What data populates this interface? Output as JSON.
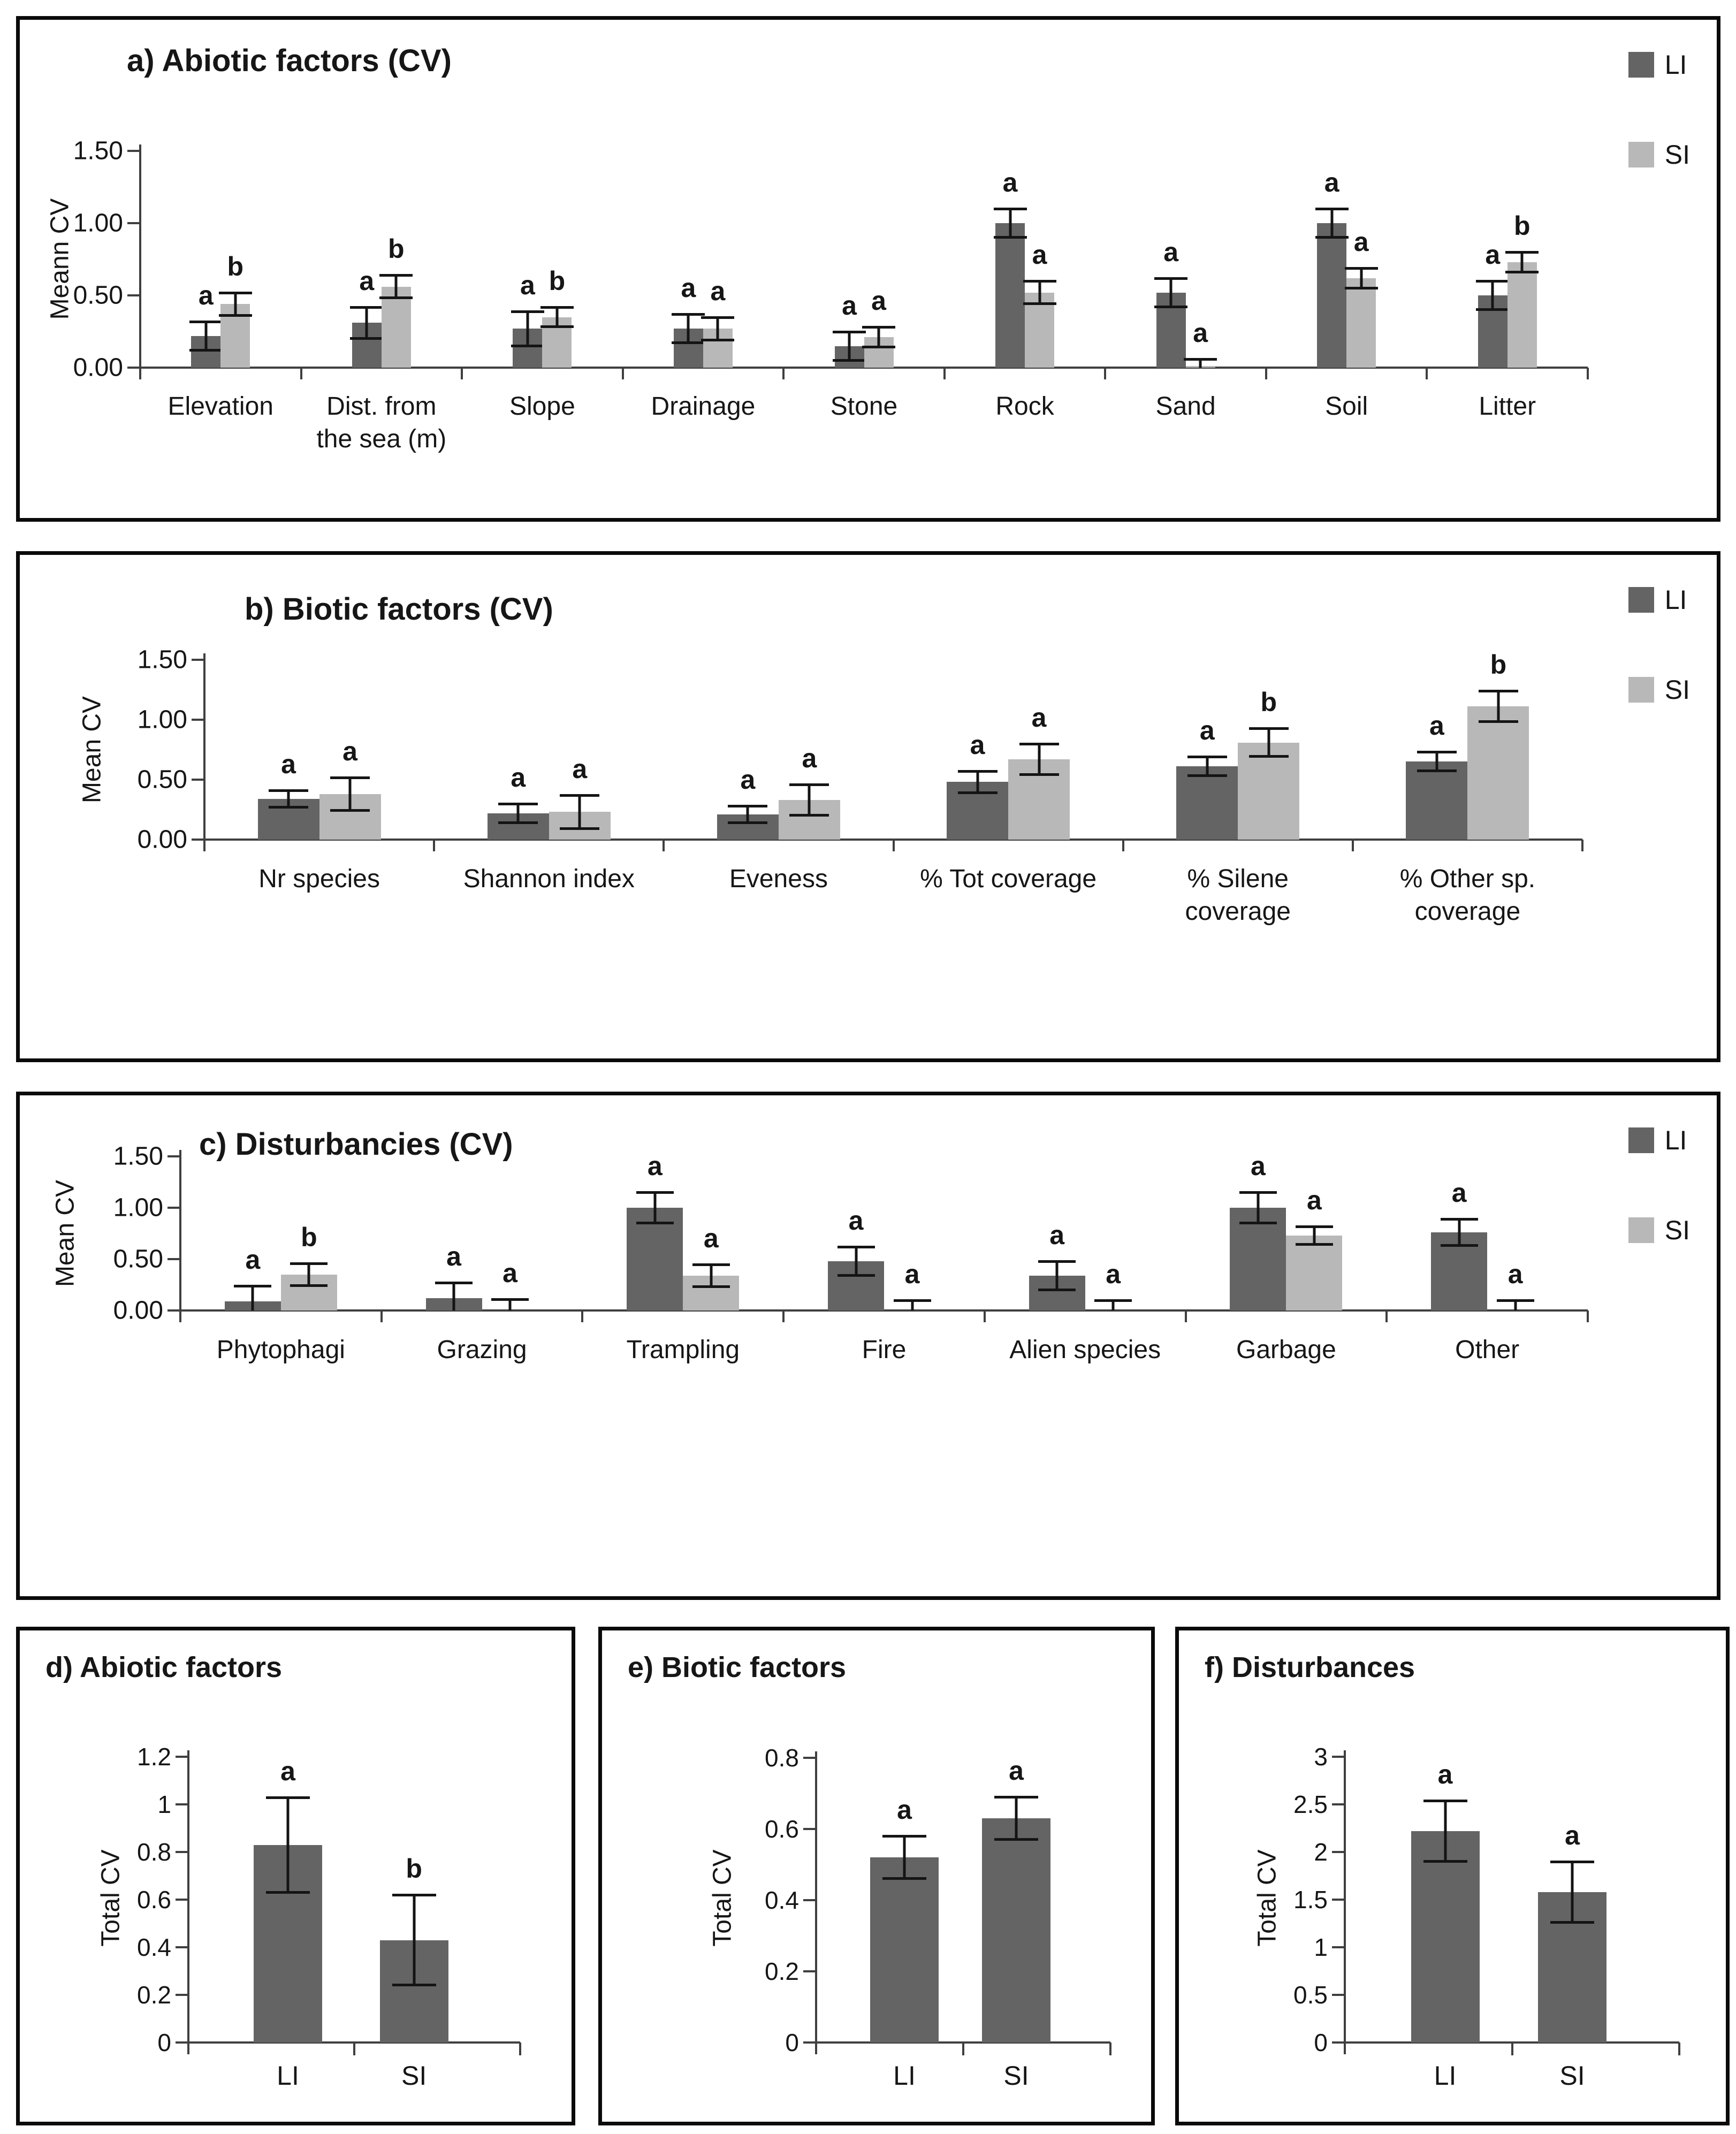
{
  "page": {
    "background": "#ffffff"
  },
  "colors": {
    "li": "#646464",
    "si": "#b8b8b8",
    "axis": "#3f3f3f",
    "error_bar": "#141414",
    "text": "#161616",
    "panel_border": "#0a0a0a"
  },
  "legend": {
    "li_label": "LI",
    "si_label": "SI"
  },
  "chart_data": [
    {
      "id": "a",
      "type": "bar",
      "title": "a) Abiotic factors (CV)",
      "ylabel": "Meann CV",
      "yticks": [
        "0.00",
        "0.50",
        "1.00",
        "1.50"
      ],
      "tick_interval": 0.5,
      "ylim": [
        0,
        1.5
      ],
      "grid": false,
      "legend": [
        "LI",
        "SI"
      ],
      "legend_position": "top-right",
      "categories": [
        "Elevation",
        "Dist. from\nthe sea (m)",
        "Slope",
        "Drainage",
        "Stone",
        "Rock",
        "Sand",
        "Soil",
        "Litter"
      ],
      "series": [
        {
          "name": "LI",
          "color_key": "li",
          "values": [
            0.22,
            0.31,
            0.27,
            0.27,
            0.15,
            1.0,
            0.52,
            1.0,
            0.5
          ],
          "errors": [
            0.1,
            0.11,
            0.12,
            0.1,
            0.1,
            0.1,
            0.1,
            0.1,
            0.1
          ],
          "letters": [
            "a",
            "a",
            "a",
            "a",
            "a",
            "a",
            "a",
            "a",
            "a"
          ]
        },
        {
          "name": "SI",
          "color_key": "si",
          "values": [
            0.44,
            0.56,
            0.35,
            0.27,
            0.21,
            0.52,
            0.01,
            0.62,
            0.73
          ],
          "errors": [
            0.08,
            0.08,
            0.07,
            0.08,
            0.07,
            0.08,
            0.05,
            0.07,
            0.07
          ],
          "letters": [
            "b",
            "b",
            "b",
            "a",
            "a",
            "a",
            "a",
            "a",
            "b"
          ]
        }
      ]
    },
    {
      "id": "b",
      "type": "bar",
      "title": "b) Biotic factors (CV)",
      "ylabel": "Mean CV",
      "yticks": [
        "0.00",
        "0.50",
        "1.00",
        "1.50"
      ],
      "tick_interval": 0.5,
      "ylim": [
        0,
        1.5
      ],
      "grid": false,
      "legend": [
        "LI",
        "SI"
      ],
      "legend_position": "top-right",
      "categories": [
        "Nr species",
        "Shannon index",
        "Eveness",
        "% Tot coverage",
        "% Silene\ncoverage",
        "% Other sp.\ncoverage"
      ],
      "series": [
        {
          "name": "LI",
          "color_key": "li",
          "values": [
            0.34,
            0.22,
            0.21,
            0.48,
            0.61,
            0.65
          ],
          "errors": [
            0.07,
            0.08,
            0.07,
            0.09,
            0.08,
            0.08
          ],
          "letters": [
            "a",
            "a",
            "a",
            "a",
            "a",
            "a"
          ]
        },
        {
          "name": "SI",
          "color_key": "si",
          "values": [
            0.38,
            0.23,
            0.33,
            0.67,
            0.81,
            1.11
          ],
          "errors": [
            0.14,
            0.14,
            0.13,
            0.13,
            0.12,
            0.13
          ],
          "letters": [
            "a",
            "a",
            "a",
            "a",
            "b",
            "b"
          ]
        }
      ]
    },
    {
      "id": "c",
      "type": "bar",
      "title": "c) Disturbancies (CV)",
      "ylabel": "Mean CV",
      "yticks": [
        "0.00",
        "0.50",
        "1.00",
        "1.50"
      ],
      "tick_interval": 0.5,
      "ylim": [
        0,
        1.5
      ],
      "grid": false,
      "legend": [
        "LI",
        "SI"
      ],
      "legend_position": "top-right",
      "categories": [
        "Phytophagi",
        "Grazing",
        "Trampling",
        "Fire",
        "Alien species",
        "Garbage",
        "Other"
      ],
      "series": [
        {
          "name": "LI",
          "color_key": "li",
          "values": [
            0.09,
            0.12,
            1.0,
            0.48,
            0.34,
            1.0,
            0.76
          ],
          "errors": [
            0.15,
            0.15,
            0.15,
            0.14,
            0.14,
            0.15,
            0.13
          ],
          "letters": [
            "a",
            "a",
            "a",
            "a",
            "a",
            "a",
            "a"
          ]
        },
        {
          "name": "SI",
          "color_key": "si",
          "values": [
            0.35,
            0.0,
            0.34,
            0.0,
            0.0,
            0.73,
            0.0
          ],
          "errors": [
            0.11,
            0.11,
            0.11,
            0.1,
            0.1,
            0.09,
            0.1
          ],
          "letters": [
            "b",
            "a",
            "a",
            "a",
            "a",
            "a",
            "a"
          ]
        }
      ]
    },
    {
      "id": "d",
      "type": "bar",
      "title": "d) Abiotic factors",
      "ylabel": "Total CV",
      "yticks": [
        "0",
        "0.2",
        "0.4",
        "0.6",
        "0.8",
        "1",
        "1.2"
      ],
      "tick_interval": 0.2,
      "ylim": [
        0,
        1.2
      ],
      "grid": false,
      "legend": [],
      "categories": [
        "LI",
        "SI"
      ],
      "series": [
        {
          "name": "Total CV",
          "color_key": "li",
          "values": [
            0.83,
            0.43
          ],
          "errors": [
            0.2,
            0.19
          ],
          "letters": [
            "a",
            "b"
          ]
        }
      ]
    },
    {
      "id": "e",
      "type": "bar",
      "title": "e) Biotic factors",
      "ylabel": "Total CV",
      "yticks": [
        "0",
        "0.2",
        "0.4",
        "0.6",
        "0.8"
      ],
      "tick_interval": 0.2,
      "ylim": [
        0,
        0.8
      ],
      "grid": false,
      "legend": [],
      "categories": [
        "LI",
        "SI"
      ],
      "series": [
        {
          "name": "Total CV",
          "color_key": "li",
          "values": [
            0.52,
            0.63
          ],
          "errors": [
            0.06,
            0.06
          ],
          "letters": [
            "a",
            "a"
          ]
        }
      ]
    },
    {
      "id": "f",
      "type": "bar",
      "title": "f) Disturbances",
      "ylabel": "Total CV",
      "yticks": [
        "0",
        "0.5",
        "1",
        "1.5",
        "2",
        "2.5",
        "3"
      ],
      "tick_interval": 0.5,
      "ylim": [
        0,
        3
      ],
      "grid": false,
      "legend": [],
      "categories": [
        "LI",
        "SI"
      ],
      "series": [
        {
          "name": "Total CV",
          "color_key": "li",
          "values": [
            2.22,
            1.58
          ],
          "errors": [
            0.32,
            0.32
          ],
          "letters": [
            "a",
            "a"
          ]
        }
      ]
    }
  ]
}
